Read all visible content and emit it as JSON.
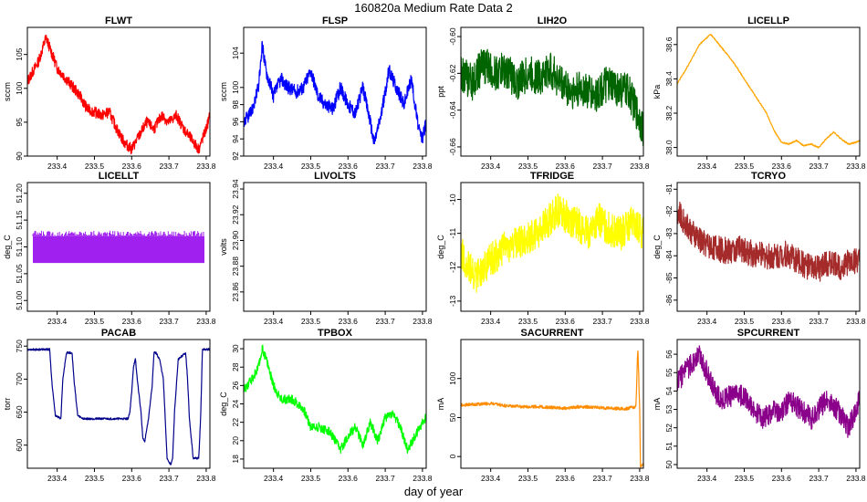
{
  "page": {
    "title": "160820a   Medium Rate Data 2",
    "xlabel": "day of year"
  },
  "chart_data": [
    {
      "type": "line",
      "title": "FLWT",
      "ylabel": "sccm",
      "color": "#ff0000",
      "xlim": [
        233.32,
        233.81
      ],
      "ylim": [
        90,
        109
      ],
      "xticks": [
        "233.4",
        "233.5",
        "233.6",
        "233.7",
        "233.8"
      ],
      "yticks": [
        "90",
        "95",
        "100",
        "105"
      ],
      "noise": 0.8,
      "x": [
        233.32,
        233.33,
        233.35,
        233.37,
        233.38,
        233.4,
        233.43,
        233.46,
        233.48,
        233.5,
        233.52,
        233.54,
        233.56,
        233.58,
        233.6,
        233.62,
        233.64,
        233.66,
        233.68,
        233.7,
        233.72,
        233.74,
        233.76,
        233.78,
        233.8,
        233.81
      ],
      "y": [
        101,
        102,
        104,
        107.5,
        106,
        103,
        101,
        99,
        97,
        96.5,
        96,
        96.5,
        94,
        92,
        91,
        93,
        95,
        94,
        96,
        95,
        96,
        94,
        92.5,
        91,
        94,
        96
      ]
    },
    {
      "type": "line",
      "title": "FLSP",
      "ylabel": "sccm",
      "color": "#0000ff",
      "xlim": [
        233.32,
        233.81
      ],
      "ylim": [
        92,
        107
      ],
      "xticks": [
        "233.4",
        "233.5",
        "233.6",
        "233.7",
        "233.8"
      ],
      "yticks": [
        "92",
        "94",
        "96",
        "98",
        "100",
        "104"
      ],
      "noise": 0.8,
      "x": [
        233.32,
        233.34,
        233.36,
        233.37,
        233.38,
        233.4,
        233.42,
        233.44,
        233.46,
        233.48,
        233.5,
        233.52,
        233.54,
        233.56,
        233.58,
        233.6,
        233.62,
        233.64,
        233.66,
        233.67,
        233.69,
        233.71,
        233.73,
        233.75,
        233.77,
        233.79,
        233.8,
        233.81
      ],
      "y": [
        96,
        97,
        100,
        105,
        102,
        99,
        101,
        100,
        99.5,
        100,
        102,
        99,
        98,
        97.5,
        100,
        98,
        97,
        100,
        96,
        93.5,
        97,
        102,
        100,
        98,
        101,
        95,
        94,
        96
      ]
    },
    {
      "type": "line",
      "title": "LIH2O",
      "ylabel": "ppt",
      "color": "#006400",
      "xlim": [
        233.32,
        233.81
      ],
      "ylim": [
        -0.665,
        -0.595
      ],
      "xticks": [
        "233.4",
        "233.5",
        "233.6",
        "233.7",
        "233.8"
      ],
      "yticks": [
        "-0.66",
        "-0.64",
        "-0.62",
        "-0.60"
      ],
      "noise": 0.01,
      "x": [
        233.32,
        233.35,
        233.38,
        233.41,
        233.44,
        233.47,
        233.5,
        233.53,
        233.56,
        233.59,
        233.62,
        233.65,
        233.68,
        233.71,
        233.74,
        233.77,
        233.8,
        233.81
      ],
      "y": [
        -0.62,
        -0.625,
        -0.615,
        -0.62,
        -0.618,
        -0.625,
        -0.62,
        -0.622,
        -0.618,
        -0.625,
        -0.63,
        -0.628,
        -0.632,
        -0.626,
        -0.628,
        -0.63,
        -0.645,
        -0.65
      ]
    },
    {
      "type": "line",
      "title": "LICELLP",
      "ylabel": "kPa",
      "color": "#ffa500",
      "xlim": [
        233.32,
        233.81
      ],
      "ylim": [
        37.95,
        38.7
      ],
      "xticks": [
        "233.4",
        "233.5",
        "233.6",
        "233.7",
        "233.8"
      ],
      "yticks": [
        "38.0",
        "38.2",
        "38.4",
        "38.6"
      ],
      "noise": 0.004,
      "x": [
        233.32,
        233.35,
        233.38,
        233.41,
        233.44,
        233.47,
        233.5,
        233.53,
        233.56,
        233.58,
        233.6,
        233.62,
        233.64,
        233.66,
        233.68,
        233.7,
        233.72,
        233.74,
        233.76,
        233.78,
        233.8,
        233.81
      ],
      "y": [
        38.37,
        38.48,
        38.6,
        38.66,
        38.58,
        38.5,
        38.4,
        38.3,
        38.2,
        38.1,
        38.03,
        38.02,
        38.04,
        38.01,
        38.02,
        38.0,
        38.05,
        38.09,
        38.05,
        38.02,
        38.03,
        38.04
      ]
    },
    {
      "type": "line",
      "title": "LICELLT",
      "ylabel": "deg_C",
      "color": "#a020f0",
      "xlim": [
        233.32,
        233.81
      ],
      "ylim": [
        50.98,
        51.22
      ],
      "xticks": [
        "233.4",
        "233.5",
        "233.6",
        "233.7",
        "233.8"
      ],
      "yticks": [
        "51.00",
        "51.05",
        "51.10",
        "51.15",
        "51.20"
      ],
      "band": [
        51.07,
        51.12
      ],
      "x": [
        233.32,
        233.81
      ],
      "y": [
        51.07,
        51.12
      ]
    },
    {
      "type": "line",
      "title": "LIVOLTS",
      "ylabel": "volts",
      "color": "#000000",
      "xlim": [
        233.32,
        233.81
      ],
      "ylim": [
        23.845,
        23.945
      ],
      "xticks": [
        "233.4",
        "233.5",
        "233.6",
        "233.7",
        "233.8"
      ],
      "yticks": [
        "23.86",
        "23.88",
        "23.90",
        "23.92",
        "23.94"
      ],
      "x": [],
      "y": []
    },
    {
      "type": "line",
      "title": "TFRIDGE",
      "ylabel": "deg_C",
      "color": "#ffff00",
      "xlim": [
        233.32,
        233.81
      ],
      "ylim": [
        -13.3,
        -9.5
      ],
      "xticks": [
        "233.4",
        "233.5",
        "233.6",
        "233.7",
        "233.8"
      ],
      "yticks": [
        "-13",
        "-12",
        "-11",
        "-10"
      ],
      "noise": 0.5,
      "x": [
        233.32,
        233.34,
        233.36,
        233.38,
        233.4,
        233.43,
        233.46,
        233.49,
        233.52,
        233.55,
        233.58,
        233.6,
        233.63,
        233.66,
        233.69,
        233.72,
        233.75,
        233.78,
        233.81
      ],
      "y": [
        -11.5,
        -12,
        -12.3,
        -12,
        -11.8,
        -11.5,
        -11.3,
        -11.2,
        -11,
        -10.7,
        -10.3,
        -10.5,
        -10.7,
        -11,
        -10.6,
        -10.9,
        -11,
        -10.7,
        -11
      ]
    },
    {
      "type": "line",
      "title": "TCRYO",
      "ylabel": "deg_C",
      "color": "#a52a2a",
      "xlim": [
        233.32,
        233.81
      ],
      "ylim": [
        -86.5,
        -80.7
      ],
      "xticks": [
        "233.4",
        "233.5",
        "233.6",
        "233.7",
        "233.8"
      ],
      "yticks": [
        "-86",
        "-85",
        "-84",
        "-83",
        "-82",
        "-81"
      ],
      "noise": 0.6,
      "x": [
        233.32,
        233.34,
        233.36,
        233.38,
        233.4,
        233.43,
        233.46,
        233.49,
        233.52,
        233.55,
        233.58,
        233.61,
        233.64,
        233.67,
        233.7,
        233.73,
        233.76,
        233.79,
        233.81
      ],
      "y": [
        -82,
        -82.5,
        -83,
        -83.3,
        -83.5,
        -83.7,
        -83.8,
        -83.7,
        -83.9,
        -84,
        -84,
        -83.9,
        -84.2,
        -84.5,
        -84.6,
        -84.3,
        -84.5,
        -84.2,
        -84.3
      ]
    },
    {
      "type": "line",
      "title": "PACAB",
      "ylabel": "torr",
      "color": "#00008b",
      "xlim": [
        233.32,
        233.81
      ],
      "ylim": [
        565,
        760
      ],
      "xticks": [
        "233.4",
        "233.5",
        "233.6",
        "233.7",
        "233.8"
      ],
      "yticks": [
        "600",
        "650",
        "700",
        "750"
      ],
      "noise": 1.5,
      "x": [
        233.32,
        233.36,
        233.38,
        233.385,
        233.395,
        233.41,
        233.415,
        233.425,
        233.44,
        233.445,
        233.455,
        233.47,
        233.52,
        233.57,
        233.59,
        233.595,
        233.6,
        233.605,
        233.61,
        233.615,
        233.625,
        233.63,
        233.635,
        233.645,
        233.655,
        233.66,
        233.665,
        233.675,
        233.685,
        233.69,
        233.695,
        233.705,
        233.71,
        233.715,
        233.725,
        233.745,
        233.75,
        233.755,
        233.765,
        233.78,
        233.785,
        233.79,
        233.81
      ],
      "y": [
        745,
        745,
        745,
        700,
        645,
        640,
        700,
        740,
        740,
        700,
        645,
        640,
        640,
        640,
        640,
        650,
        680,
        720,
        730,
        700,
        650,
        610,
        605,
        640,
        690,
        740,
        740,
        730,
        700,
        640,
        580,
        570,
        580,
        650,
        730,
        740,
        700,
        640,
        580,
        580,
        640,
        745,
        745
      ]
    },
    {
      "type": "line",
      "title": "TPBOX",
      "ylabel": "deg_C",
      "color": "#00ff00",
      "xlim": [
        233.32,
        233.81
      ],
      "ylim": [
        17,
        31
      ],
      "xticks": [
        "233.4",
        "233.5",
        "233.6",
        "233.7",
        "233.8"
      ],
      "yticks": [
        "18",
        "20",
        "22",
        "24",
        "26",
        "28",
        "30"
      ],
      "noise": 0.5,
      "x": [
        233.32,
        233.34,
        233.36,
        233.37,
        233.38,
        233.4,
        233.42,
        233.45,
        233.48,
        233.5,
        233.52,
        233.55,
        233.58,
        233.6,
        233.62,
        233.64,
        233.66,
        233.68,
        233.7,
        233.72,
        233.74,
        233.76,
        233.78,
        233.8,
        233.81
      ],
      "y": [
        25.5,
        26.5,
        28,
        30,
        29,
        26,
        24.5,
        24.5,
        23.5,
        21.5,
        21.5,
        21,
        19,
        20.5,
        21.5,
        19.5,
        22,
        20,
        22.5,
        23,
        21.5,
        19,
        20.5,
        22,
        22.5
      ]
    },
    {
      "type": "line",
      "title": "SACURRENT",
      "ylabel": "mA",
      "color": "#ff8c00",
      "xlim": [
        233.32,
        233.81
      ],
      "ylim": [
        -15,
        150
      ],
      "xticks": [
        "233.4",
        "233.5",
        "233.6",
        "233.7",
        "233.8"
      ],
      "yticks": [
        "0",
        "50",
        "100"
      ],
      "noise": 2,
      "x": [
        233.32,
        233.36,
        233.4,
        233.44,
        233.48,
        233.52,
        233.56,
        233.6,
        233.64,
        233.68,
        233.72,
        233.76,
        233.79,
        233.795,
        233.8,
        233.802,
        233.805,
        233.81
      ],
      "y": [
        66,
        67,
        68,
        65,
        64,
        64,
        63,
        62,
        64,
        63,
        62,
        61,
        64,
        140,
        64,
        -15,
        -10,
        -12
      ]
    },
    {
      "type": "line",
      "title": "SPCURRENT",
      "ylabel": "mA",
      "color": "#8b008b",
      "xlim": [
        233.32,
        233.81
      ],
      "ylim": [
        49.8,
        56.8
      ],
      "xticks": [
        "233.4",
        "233.5",
        "233.6",
        "233.7",
        "233.8"
      ],
      "yticks": [
        "50",
        "51",
        "52",
        "53",
        "54",
        "55",
        "56"
      ],
      "noise": 0.6,
      "x": [
        233.32,
        233.34,
        233.36,
        233.38,
        233.4,
        233.42,
        233.44,
        233.46,
        233.5,
        233.52,
        233.55,
        233.58,
        233.6,
        233.62,
        233.65,
        233.68,
        233.7,
        233.72,
        233.75,
        233.78,
        233.8,
        233.81
      ],
      "y": [
        54.5,
        55,
        55.5,
        56,
        55,
        54,
        53.5,
        53.7,
        53.8,
        53,
        52.5,
        53,
        52.8,
        53.5,
        53,
        52.5,
        53,
        53.5,
        53,
        52,
        53,
        53.5
      ]
    }
  ]
}
